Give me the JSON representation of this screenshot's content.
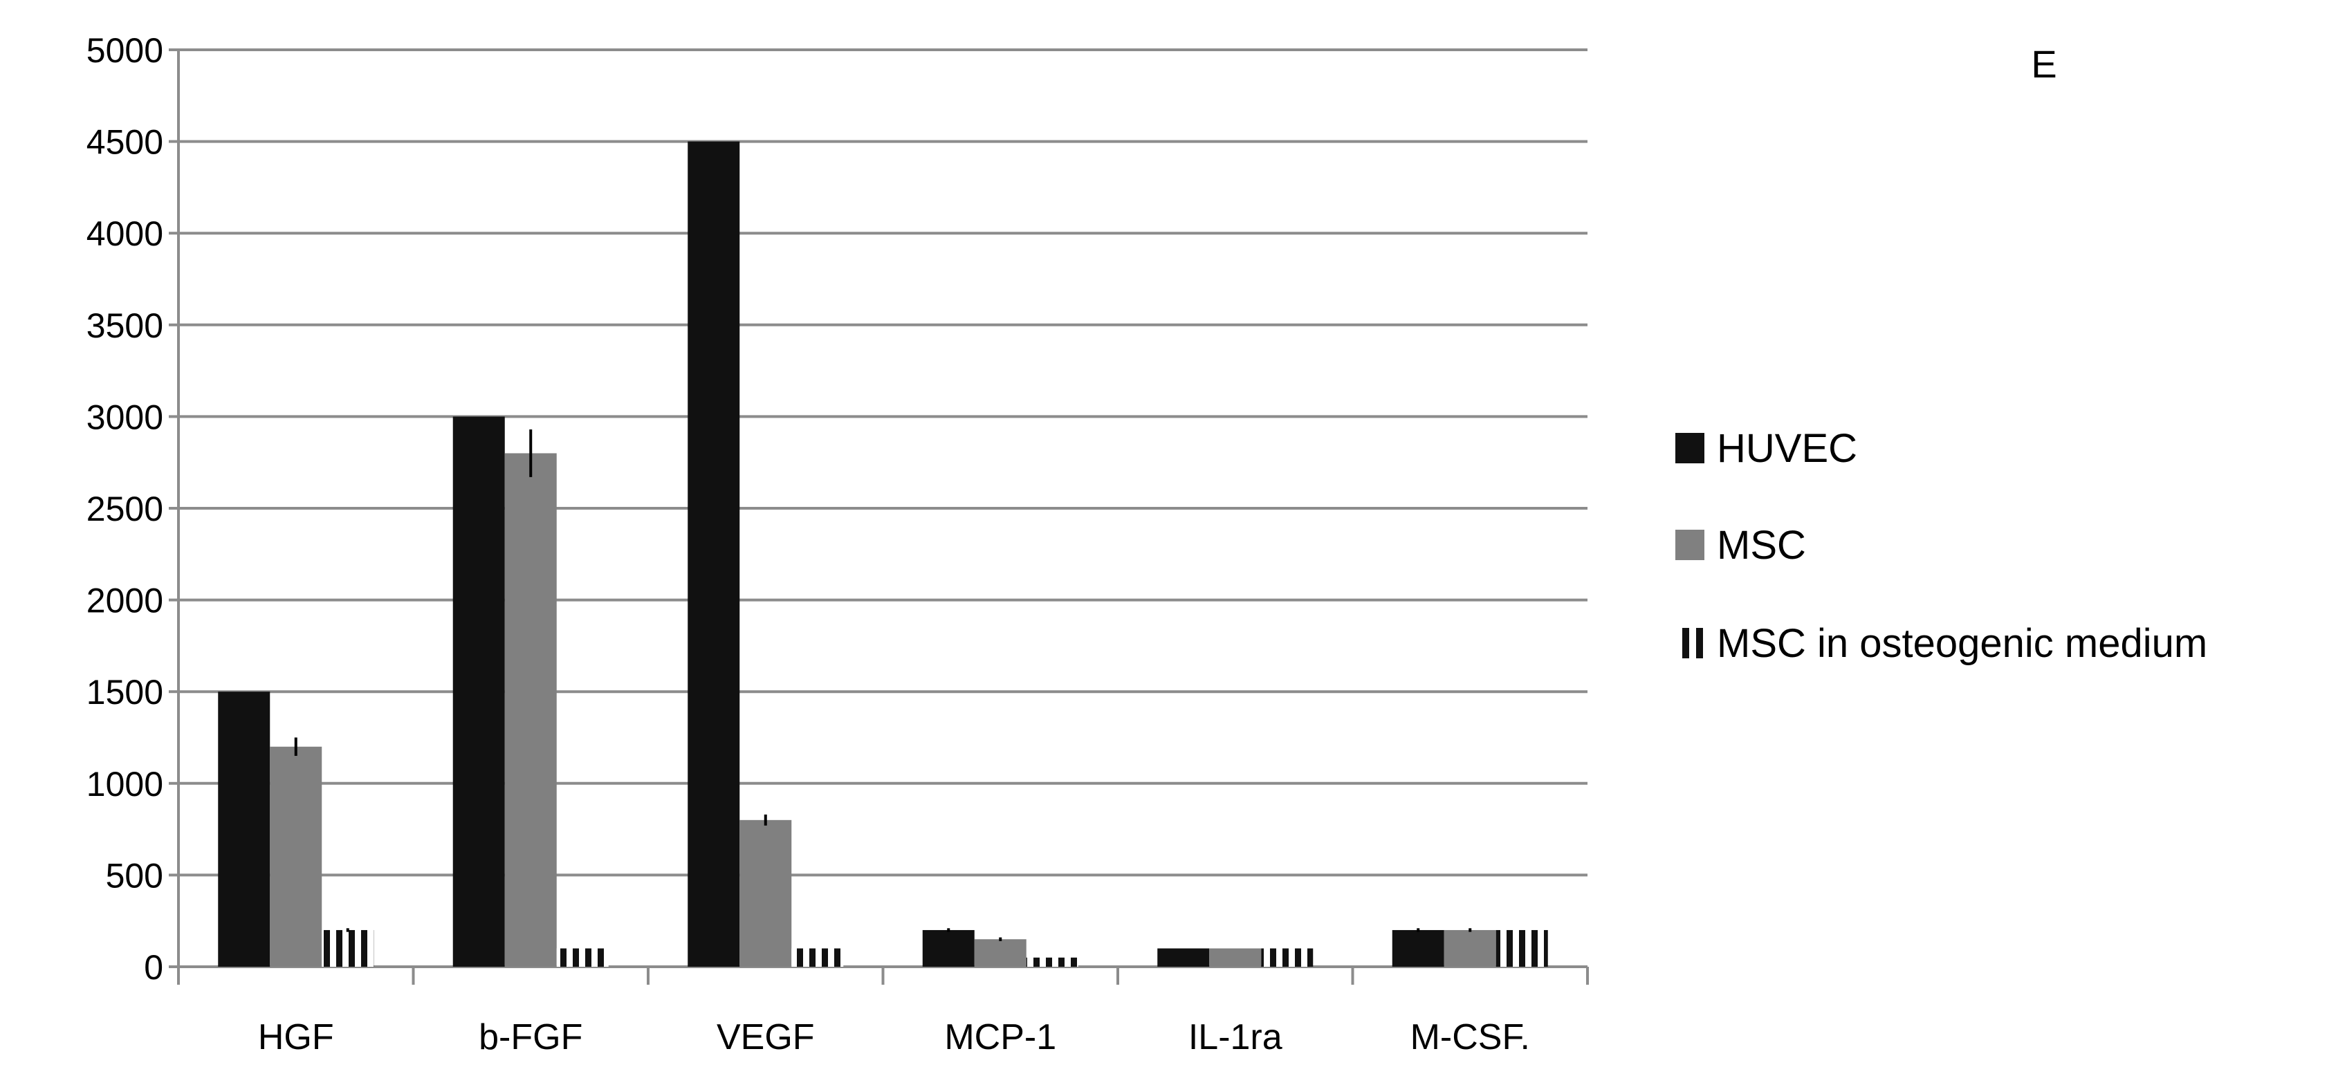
{
  "panel_letter": "E",
  "chart_data": {
    "type": "bar",
    "title": "",
    "xlabel": "",
    "ylabel": "",
    "ylim": [
      0,
      5000
    ],
    "yticks": [
      0,
      500,
      1000,
      1500,
      2000,
      2500,
      3000,
      3500,
      4000,
      4500,
      5000
    ],
    "grid": true,
    "legend_position": "right",
    "categories": [
      "HGF",
      "b-FGF",
      "VEGF",
      "MCP-1",
      "IL-1ra",
      "M-CSF."
    ],
    "series": [
      {
        "name": "HUVEC",
        "color": "#111111",
        "pattern": "solid",
        "values": [
          1500,
          3000,
          4500,
          200,
          100,
          200
        ],
        "errors": [
          0,
          0,
          0,
          10,
          0,
          10
        ]
      },
      {
        "name": "MSC",
        "color": "#808080",
        "pattern": "solid",
        "values": [
          1200,
          2800,
          800,
          150,
          100,
          200
        ],
        "errors": [
          50,
          130,
          30,
          10,
          0,
          10
        ]
      },
      {
        "name": "MSC in osteogenic medium",
        "color": "#111111",
        "pattern": "vertical-stripes",
        "values": [
          200,
          100,
          100,
          50,
          100,
          200
        ],
        "errors": [
          10,
          0,
          0,
          0,
          0,
          0
        ]
      }
    ]
  }
}
